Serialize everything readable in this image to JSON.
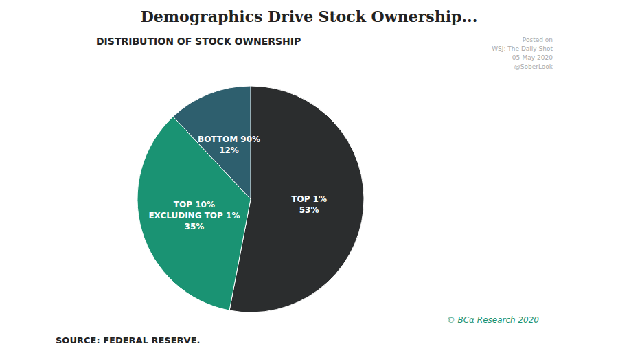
{
  "chart_data": {
    "type": "pie",
    "title": "Demographics Drive Stock Ownership...",
    "subtitle": "DISTRIBUTION OF STOCK OWNERSHIP",
    "annotations": [
      "Posted on",
      "WSJ: The Daily Shot",
      "05-May-2020",
      "@SoberLook"
    ],
    "credit": "© BCα Research 2020",
    "source": "SOURCE: FEDERAL RESERVE.",
    "categories": [
      "TOP 1%",
      "TOP 10%\nEXCLUDING TOP 1%",
      "BOTTOM 90%"
    ],
    "values": [
      53,
      35,
      12
    ],
    "value_labels": [
      "53%",
      "35%",
      "12%"
    ],
    "data_labels": true,
    "colors": [
      "#2b2d2e",
      "#1a9373",
      "#2e5f6e"
    ]
  }
}
